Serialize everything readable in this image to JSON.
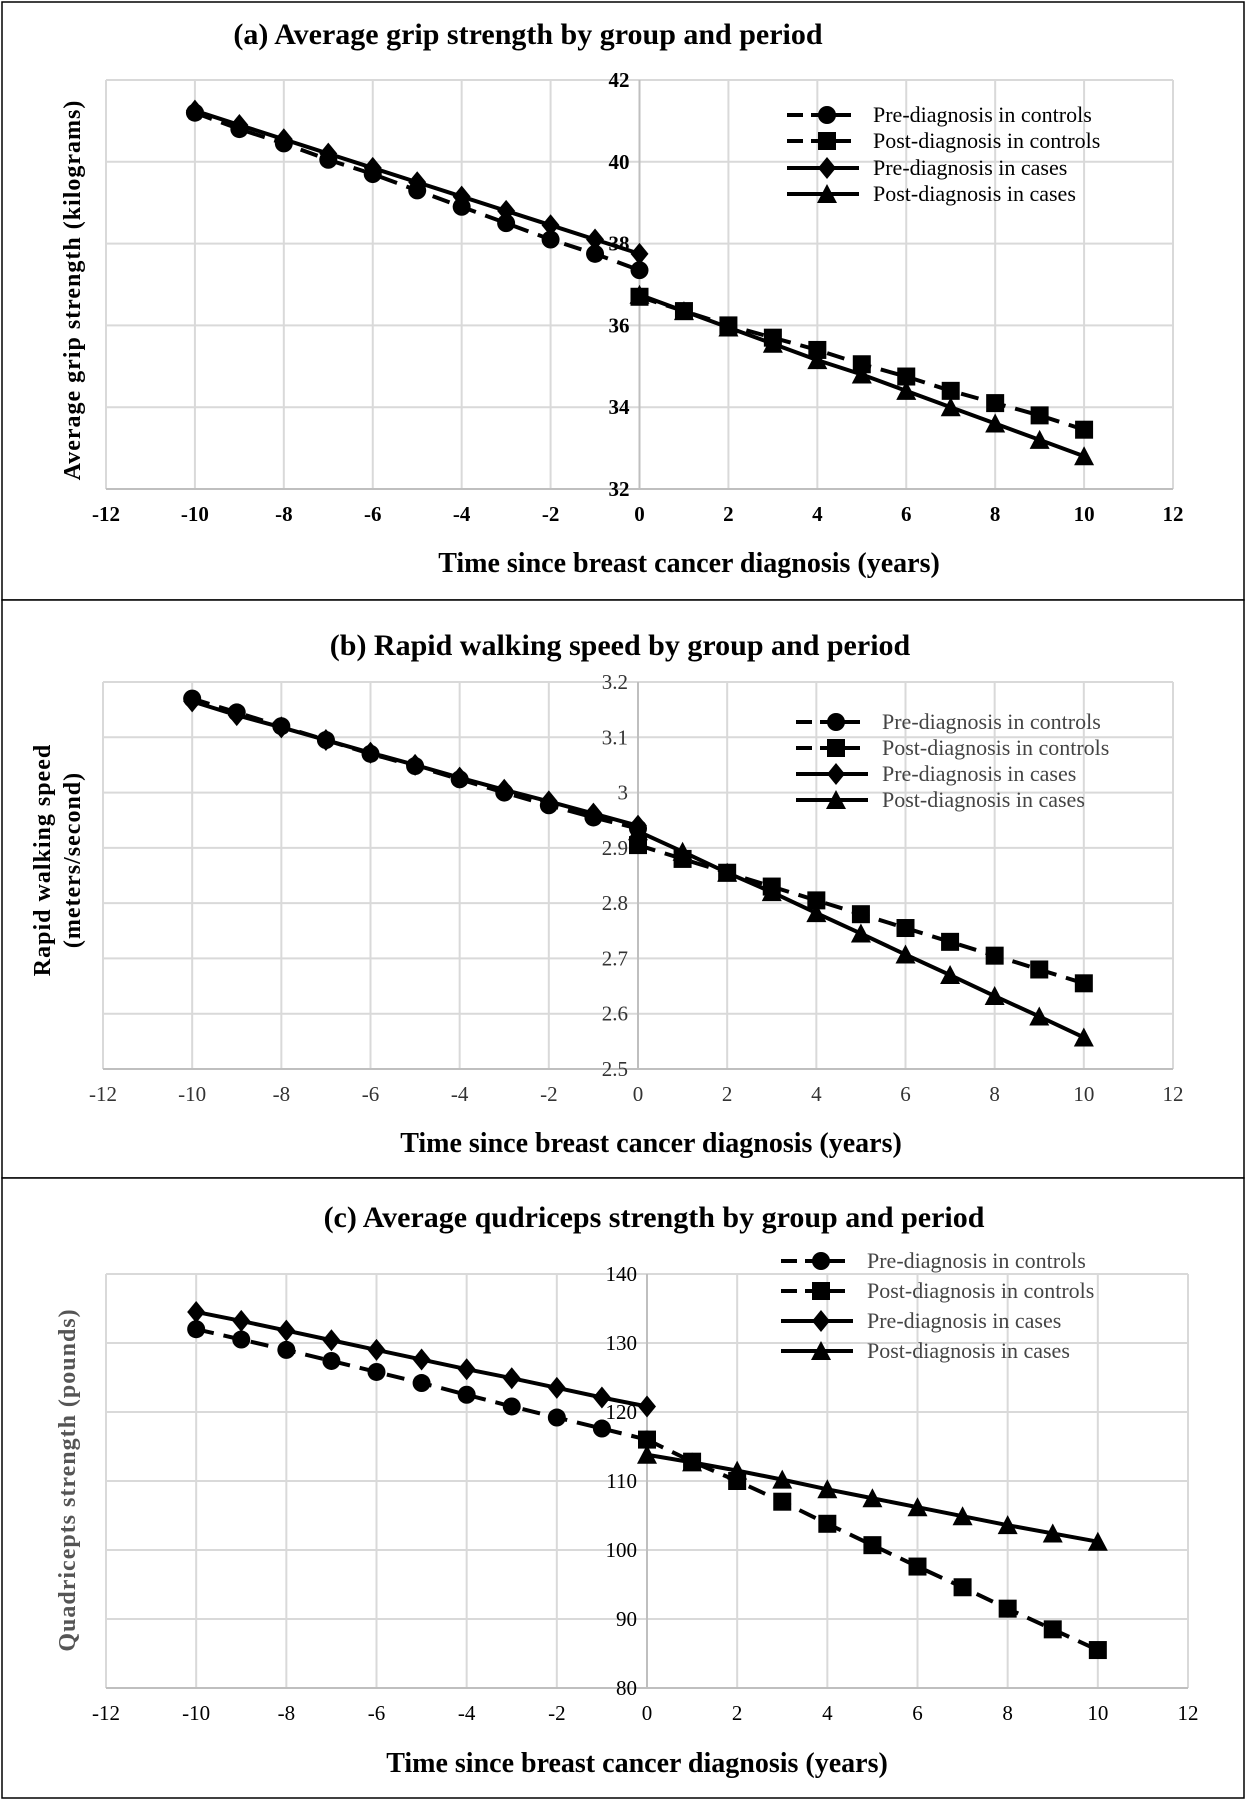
{
  "chart_data": [
    {
      "type": "line",
      "title": "(a) Average grip strength by group and period",
      "xlabel": "Time since breast cancer diagnosis (years)",
      "ylabel": "Average grip strength (kilograms)",
      "xlim": [
        -12,
        12
      ],
      "ylim": [
        32,
        42
      ],
      "xticks": [
        -12,
        -10,
        -8,
        -6,
        -4,
        -2,
        0,
        2,
        4,
        6,
        8,
        10,
        12
      ],
      "yticks": [
        32,
        34,
        36,
        38,
        40,
        42
      ],
      "grid": true,
      "legend_position": "top-right",
      "series": [
        {
          "name": "Pre-diagnosis in controls",
          "marker": "circle",
          "dashed": true,
          "x": [
            -10,
            -9,
            -8,
            -7,
            -6,
            -5,
            -4,
            -3,
            -2,
            -1,
            0
          ],
          "values": [
            41.2,
            40.8,
            40.45,
            40.05,
            39.7,
            39.3,
            38.9,
            38.5,
            38.1,
            37.75,
            37.35
          ]
        },
        {
          "name": "Post-diagnosis in controls",
          "marker": "square",
          "dashed": true,
          "x": [
            0,
            1,
            2,
            3,
            4,
            5,
            6,
            7,
            8,
            9,
            10
          ],
          "values": [
            36.7,
            36.35,
            36.0,
            35.7,
            35.4,
            35.05,
            34.75,
            34.4,
            34.1,
            33.8,
            33.45
          ]
        },
        {
          "name": "Pre-diagnosis in cases",
          "marker": "diamond",
          "dashed": false,
          "x": [
            -10,
            -9,
            -8,
            -7,
            -6,
            -5,
            -4,
            -3,
            -2,
            -1,
            0
          ],
          "values": [
            41.25,
            40.9,
            40.55,
            40.2,
            39.85,
            39.5,
            39.15,
            38.8,
            38.45,
            38.1,
            37.75
          ]
        },
        {
          "name": "Post-diagnosis in cases",
          "marker": "triangle",
          "dashed": false,
          "x": [
            0,
            1,
            2,
            3,
            4,
            5,
            6,
            7,
            8,
            9,
            10
          ],
          "values": [
            36.75,
            36.35,
            35.95,
            35.55,
            35.15,
            34.8,
            34.4,
            34.0,
            33.6,
            33.2,
            32.8
          ]
        }
      ]
    },
    {
      "type": "line",
      "title": "(b) Rapid walking speed by group and period",
      "xlabel": "Time since breast cancer diagnosis (years)",
      "ylabel": [
        "Rapid walking speed",
        "(meters/second)"
      ],
      "xlim": [
        -12,
        12
      ],
      "ylim": [
        2.5,
        3.2
      ],
      "xticks": [
        -12,
        -10,
        -8,
        -6,
        -4,
        -2,
        0,
        2,
        4,
        6,
        8,
        10,
        12
      ],
      "yticks": [
        "2.5",
        "2.6",
        "2.7",
        "2.8",
        "2.9",
        "3",
        "3.1",
        "3.2"
      ],
      "grid": true,
      "legend_position": "top-right",
      "series": [
        {
          "name": "Pre-diagnosis in controls",
          "marker": "circle",
          "dashed": true,
          "x": [
            -10,
            -9,
            -8,
            -7,
            -6,
            -5,
            -4,
            -3,
            -2,
            -1,
            0
          ],
          "values": [
            3.17,
            3.145,
            3.12,
            3.095,
            3.07,
            3.048,
            3.024,
            3.0,
            2.977,
            2.955,
            2.935
          ]
        },
        {
          "name": "Post-diagnosis in controls",
          "marker": "square",
          "dashed": true,
          "x": [
            0,
            1,
            2,
            3,
            4,
            5,
            6,
            7,
            8,
            9,
            10
          ],
          "values": [
            2.905,
            2.88,
            2.855,
            2.83,
            2.805,
            2.78,
            2.755,
            2.73,
            2.705,
            2.68,
            2.655
          ]
        },
        {
          "name": "Pre-diagnosis in cases",
          "marker": "diamond",
          "dashed": false,
          "x": [
            -10,
            -9,
            -8,
            -7,
            -6,
            -5,
            -4,
            -3,
            -2,
            -1,
            0
          ],
          "values": [
            3.165,
            3.14,
            3.118,
            3.095,
            3.072,
            3.05,
            3.027,
            3.005,
            2.984,
            2.962,
            2.94
          ]
        },
        {
          "name": "Post-diagnosis in cases",
          "marker": "triangle",
          "dashed": false,
          "x": [
            0,
            1,
            2,
            3,
            4,
            5,
            6,
            7,
            8,
            9,
            10
          ],
          "values": [
            2.93,
            2.893,
            2.855,
            2.82,
            2.782,
            2.745,
            2.707,
            2.67,
            2.632,
            2.595,
            2.557
          ]
        }
      ]
    },
    {
      "type": "line",
      "title": "(c) Average qudriceps strength by group and period",
      "xlabel": "Time  since breast cancer diagnosis (years)",
      "ylabel": "Quadricepts strength (pounds)",
      "xlim": [
        -12,
        12
      ],
      "ylim": [
        80,
        140
      ],
      "xticks": [
        -12,
        -10,
        -8,
        -6,
        -4,
        -2,
        0,
        2,
        4,
        6,
        8,
        10,
        12
      ],
      "yticks": [
        80,
        90,
        100,
        110,
        120,
        130,
        140
      ],
      "grid": true,
      "legend_position": "top-right",
      "series": [
        {
          "name": "Pre-diagnosis in controls",
          "marker": "circle",
          "dashed": true,
          "x": [
            -10,
            -9,
            -8,
            -7,
            -6,
            -5,
            -4,
            -3,
            -2,
            -1,
            0
          ],
          "values": [
            132,
            130.5,
            129,
            127.4,
            125.8,
            124.2,
            122.5,
            120.8,
            119.2,
            117.6,
            116
          ]
        },
        {
          "name": "Post-diagnosis in controls",
          "marker": "square",
          "dashed": true,
          "x": [
            0,
            1,
            2,
            3,
            4,
            5,
            6,
            7,
            8,
            9,
            10
          ],
          "values": [
            116,
            112.8,
            110,
            107,
            103.8,
            100.7,
            97.6,
            94.6,
            91.5,
            88.5,
            85.5
          ]
        },
        {
          "name": "Pre-diagnosis in cases",
          "marker": "diamond",
          "dashed": false,
          "x": [
            -10,
            -9,
            -8,
            -7,
            -6,
            -5,
            -4,
            -3,
            -2,
            -1,
            0
          ],
          "values": [
            134.5,
            133.2,
            131.8,
            130.4,
            129,
            127.6,
            126.2,
            124.9,
            123.5,
            122.1,
            120.8
          ]
        },
        {
          "name": "Post-diagnosis in cases",
          "marker": "triangle",
          "dashed": false,
          "x": [
            0,
            1,
            2,
            3,
            4,
            5,
            6,
            7,
            8,
            9,
            10
          ],
          "values": [
            113.8,
            112.7,
            111.5,
            110.2,
            108.8,
            107.5,
            106.2,
            104.9,
            103.6,
            102.4,
            101.2
          ]
        }
      ]
    }
  ]
}
